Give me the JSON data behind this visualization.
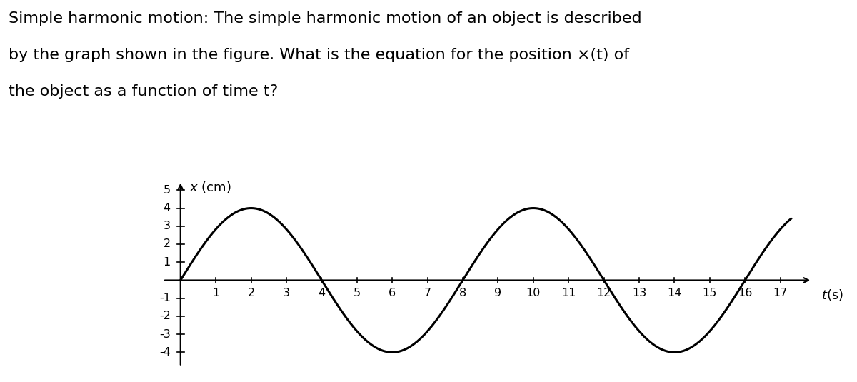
{
  "title_lines": [
    "Simple harmonic motion: The simple harmonic motion of an object is described",
    "by the graph shown in the figure. What is the equation for the position ×(t) of",
    "the object as a function of time t?"
  ],
  "amplitude": 4,
  "period": 8,
  "t_start": 0,
  "t_end": 17.3,
  "x_min": -0.5,
  "x_max": 18.2,
  "y_min": -4.8,
  "y_max": 5.8,
  "yticks": [
    -4,
    -3,
    -2,
    -1,
    1,
    2,
    3,
    4,
    5
  ],
  "xticks": [
    1,
    2,
    3,
    4,
    5,
    6,
    7,
    8,
    9,
    10,
    11,
    12,
    13,
    14,
    15,
    16,
    17
  ],
  "line_color": "#000000",
  "line_width": 2.2,
  "background_color": "#ffffff",
  "title_fontsize": 16,
  "axis_label_fontsize": 13,
  "tick_fontsize": 11.5
}
